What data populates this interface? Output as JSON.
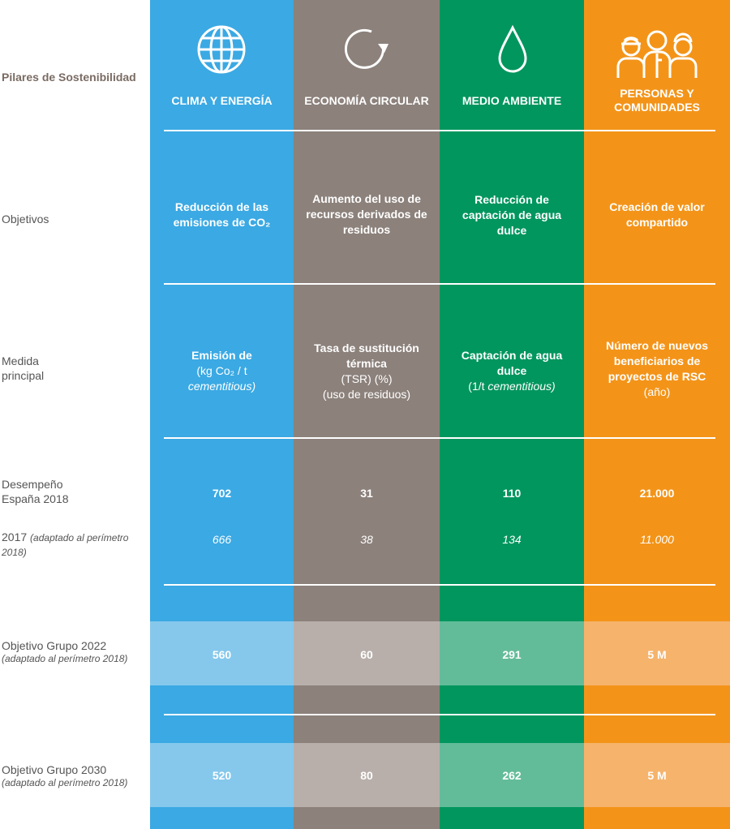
{
  "labels": {
    "pillars": "Pilares de Sostenibilidad",
    "objectives": "Objetivos",
    "measure": "Medida principal",
    "performance": "Desempeño España 2018",
    "prev_year": "2017",
    "prev_note": "(adaptado al perímetro 2018)",
    "target2022": "Objetivo Grupo 2022",
    "target2022_note": "(adaptado al perímetro 2018)",
    "target2030": "Objetivo Grupo 2030",
    "target2030_note": "(adaptado al perímetro 2018)"
  },
  "columns": [
    {
      "icon": "globe-icon",
      "color": "#3ba9e3",
      "title": "CLIMA Y ENERGÍA",
      "objective": "Reducción de las emisiones de CO₂",
      "measure_bold": "Emisión de",
      "measure_rest": "(kg Co₂ / t",
      "measure_italic": "cementitious)",
      "performance2018": "702",
      "value2017": "666",
      "target2022": "560",
      "target2030": "520"
    },
    {
      "icon": "circular-arrow-icon",
      "color": "#8c817b",
      "title": "ECONOMÍA CIRCULAR",
      "objective": "Aumento del uso de recursos derivados de residuos",
      "measure_bold": "Tasa de sustitución térmica",
      "measure_rest": "(TSR) (%)",
      "measure_italic": "(uso de residuos)",
      "performance2018": "31",
      "value2017": "38",
      "target2022": "60",
      "target2030": "80"
    },
    {
      "icon": "water-drop-icon",
      "color": "#00965e",
      "title": "MEDIO AMBIENTE",
      "objective": "Reducción de captación de agua dulce",
      "measure_bold": "Captación de agua dulce",
      "measure_rest": "(1/t",
      "measure_italic": "cementitious)",
      "performance2018": "110",
      "value2017": "134",
      "target2022": "291",
      "target2030": "262"
    },
    {
      "icon": "people-icon",
      "color": "#f39419",
      "title": "PERSONAS Y COMUNIDADES",
      "objective": "Creación de valor compartido",
      "measure_bold": "Número de nuevos beneficiarios de proyectos de RSC",
      "measure_rest": "(año)",
      "measure_italic": "",
      "performance2018": "21.000",
      "value2017": "11.000",
      "target2022": "5 M",
      "target2030": "5 M"
    }
  ]
}
